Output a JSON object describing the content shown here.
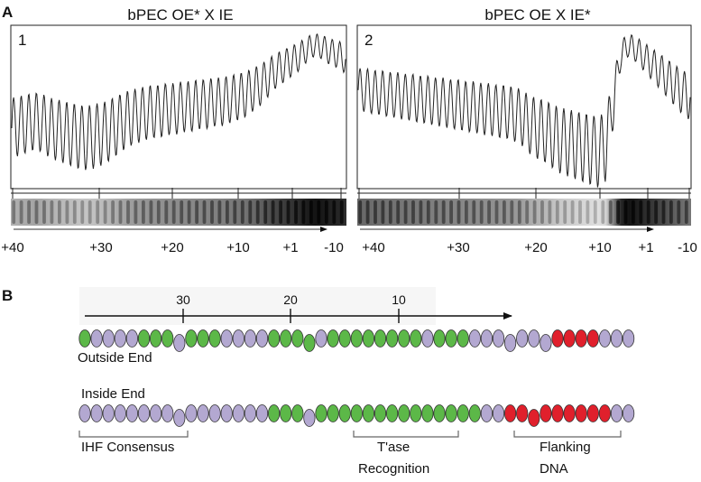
{
  "panel_a": {
    "label": "A",
    "traces": [
      {
        "number": "1",
        "title": "bPEC OE* X IE",
        "band_density": [
          0.3,
          0.32,
          0.34,
          0.36,
          0.34,
          0.3,
          0.28,
          0.26,
          0.24,
          0.22,
          0.22,
          0.24,
          0.26,
          0.3,
          0.34,
          0.38,
          0.4,
          0.42,
          0.44,
          0.44,
          0.46,
          0.46,
          0.48,
          0.48,
          0.5,
          0.5,
          0.52,
          0.52,
          0.54,
          0.56,
          0.58,
          0.62,
          0.66,
          0.72,
          0.78,
          0.82,
          0.86,
          0.9,
          0.96,
          1.0,
          0.98,
          0.94,
          0.92,
          0.88
        ],
        "ticks": [
          "+40",
          "+30",
          "+20",
          "+10",
          "+1",
          "-10"
        ]
      },
      {
        "number": "2",
        "title": "bPEC OE X IE*",
        "band_density": [
          0.62,
          0.62,
          0.6,
          0.6,
          0.58,
          0.58,
          0.56,
          0.56,
          0.54,
          0.54,
          0.52,
          0.52,
          0.5,
          0.5,
          0.48,
          0.48,
          0.46,
          0.46,
          0.44,
          0.44,
          0.42,
          0.4,
          0.34,
          0.3,
          0.28,
          0.24,
          0.2,
          0.18,
          0.16,
          0.14,
          0.12,
          0.1,
          0.14,
          0.5,
          0.92,
          1.0,
          0.96,
          0.9,
          0.84,
          0.78,
          0.72,
          0.66,
          0.6,
          0.56
        ],
        "ticks": [
          "+40",
          "+30",
          "+20",
          "+10",
          "+1",
          "-10"
        ]
      }
    ]
  },
  "panel_b": {
    "label": "B",
    "ruler_labels": [
      "30",
      "20",
      "10"
    ],
    "outside_end": {
      "label": "Outside End",
      "beads": "gppppgggpgggppppggggpggggggggpgggppppppprrrrppp"
    },
    "inside_end": {
      "label": "Inside End",
      "beads": "ppppppppppppppppgggpggggggggggggggpprrrrrrrrrpp"
    },
    "brackets": [
      {
        "label_lines": [
          "IHF Consensus"
        ]
      },
      {
        "label_lines": [
          "T'ase",
          "Recognition"
        ]
      },
      {
        "label_lines": [
          "Flanking",
          "DNA"
        ]
      }
    ]
  },
  "colors": {
    "green": "#5cb848",
    "purple": "#b3a8d1",
    "red": "#e0202c",
    "outline": "#333333"
  }
}
